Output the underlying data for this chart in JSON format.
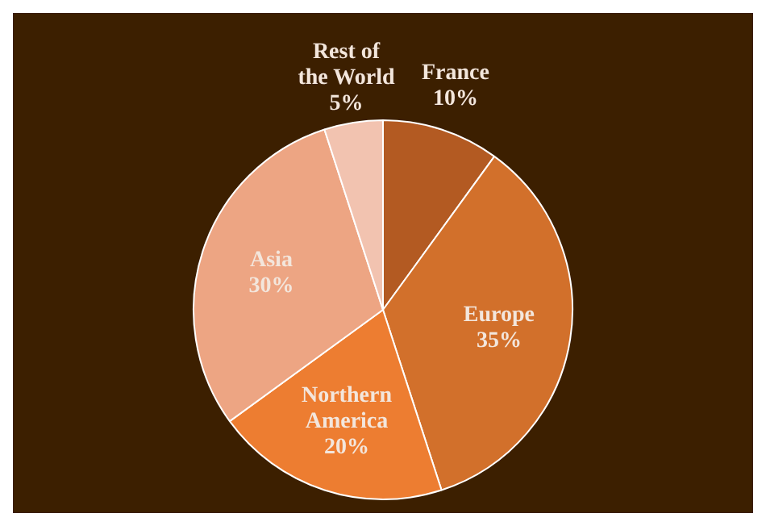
{
  "chart_data": {
    "type": "pie",
    "categories": [
      "France",
      "Europe",
      "Northern America",
      "Asia",
      "Rest of the World"
    ],
    "values": [
      10,
      35,
      20,
      30,
      5
    ],
    "value_labels": [
      "10%",
      "35%",
      "20%",
      "30%",
      "5%"
    ],
    "colors": [
      "#b35a22",
      "#d2702b",
      "#ed7d31",
      "#eda583",
      "#f2c3b0"
    ],
    "legend": false
  }
}
